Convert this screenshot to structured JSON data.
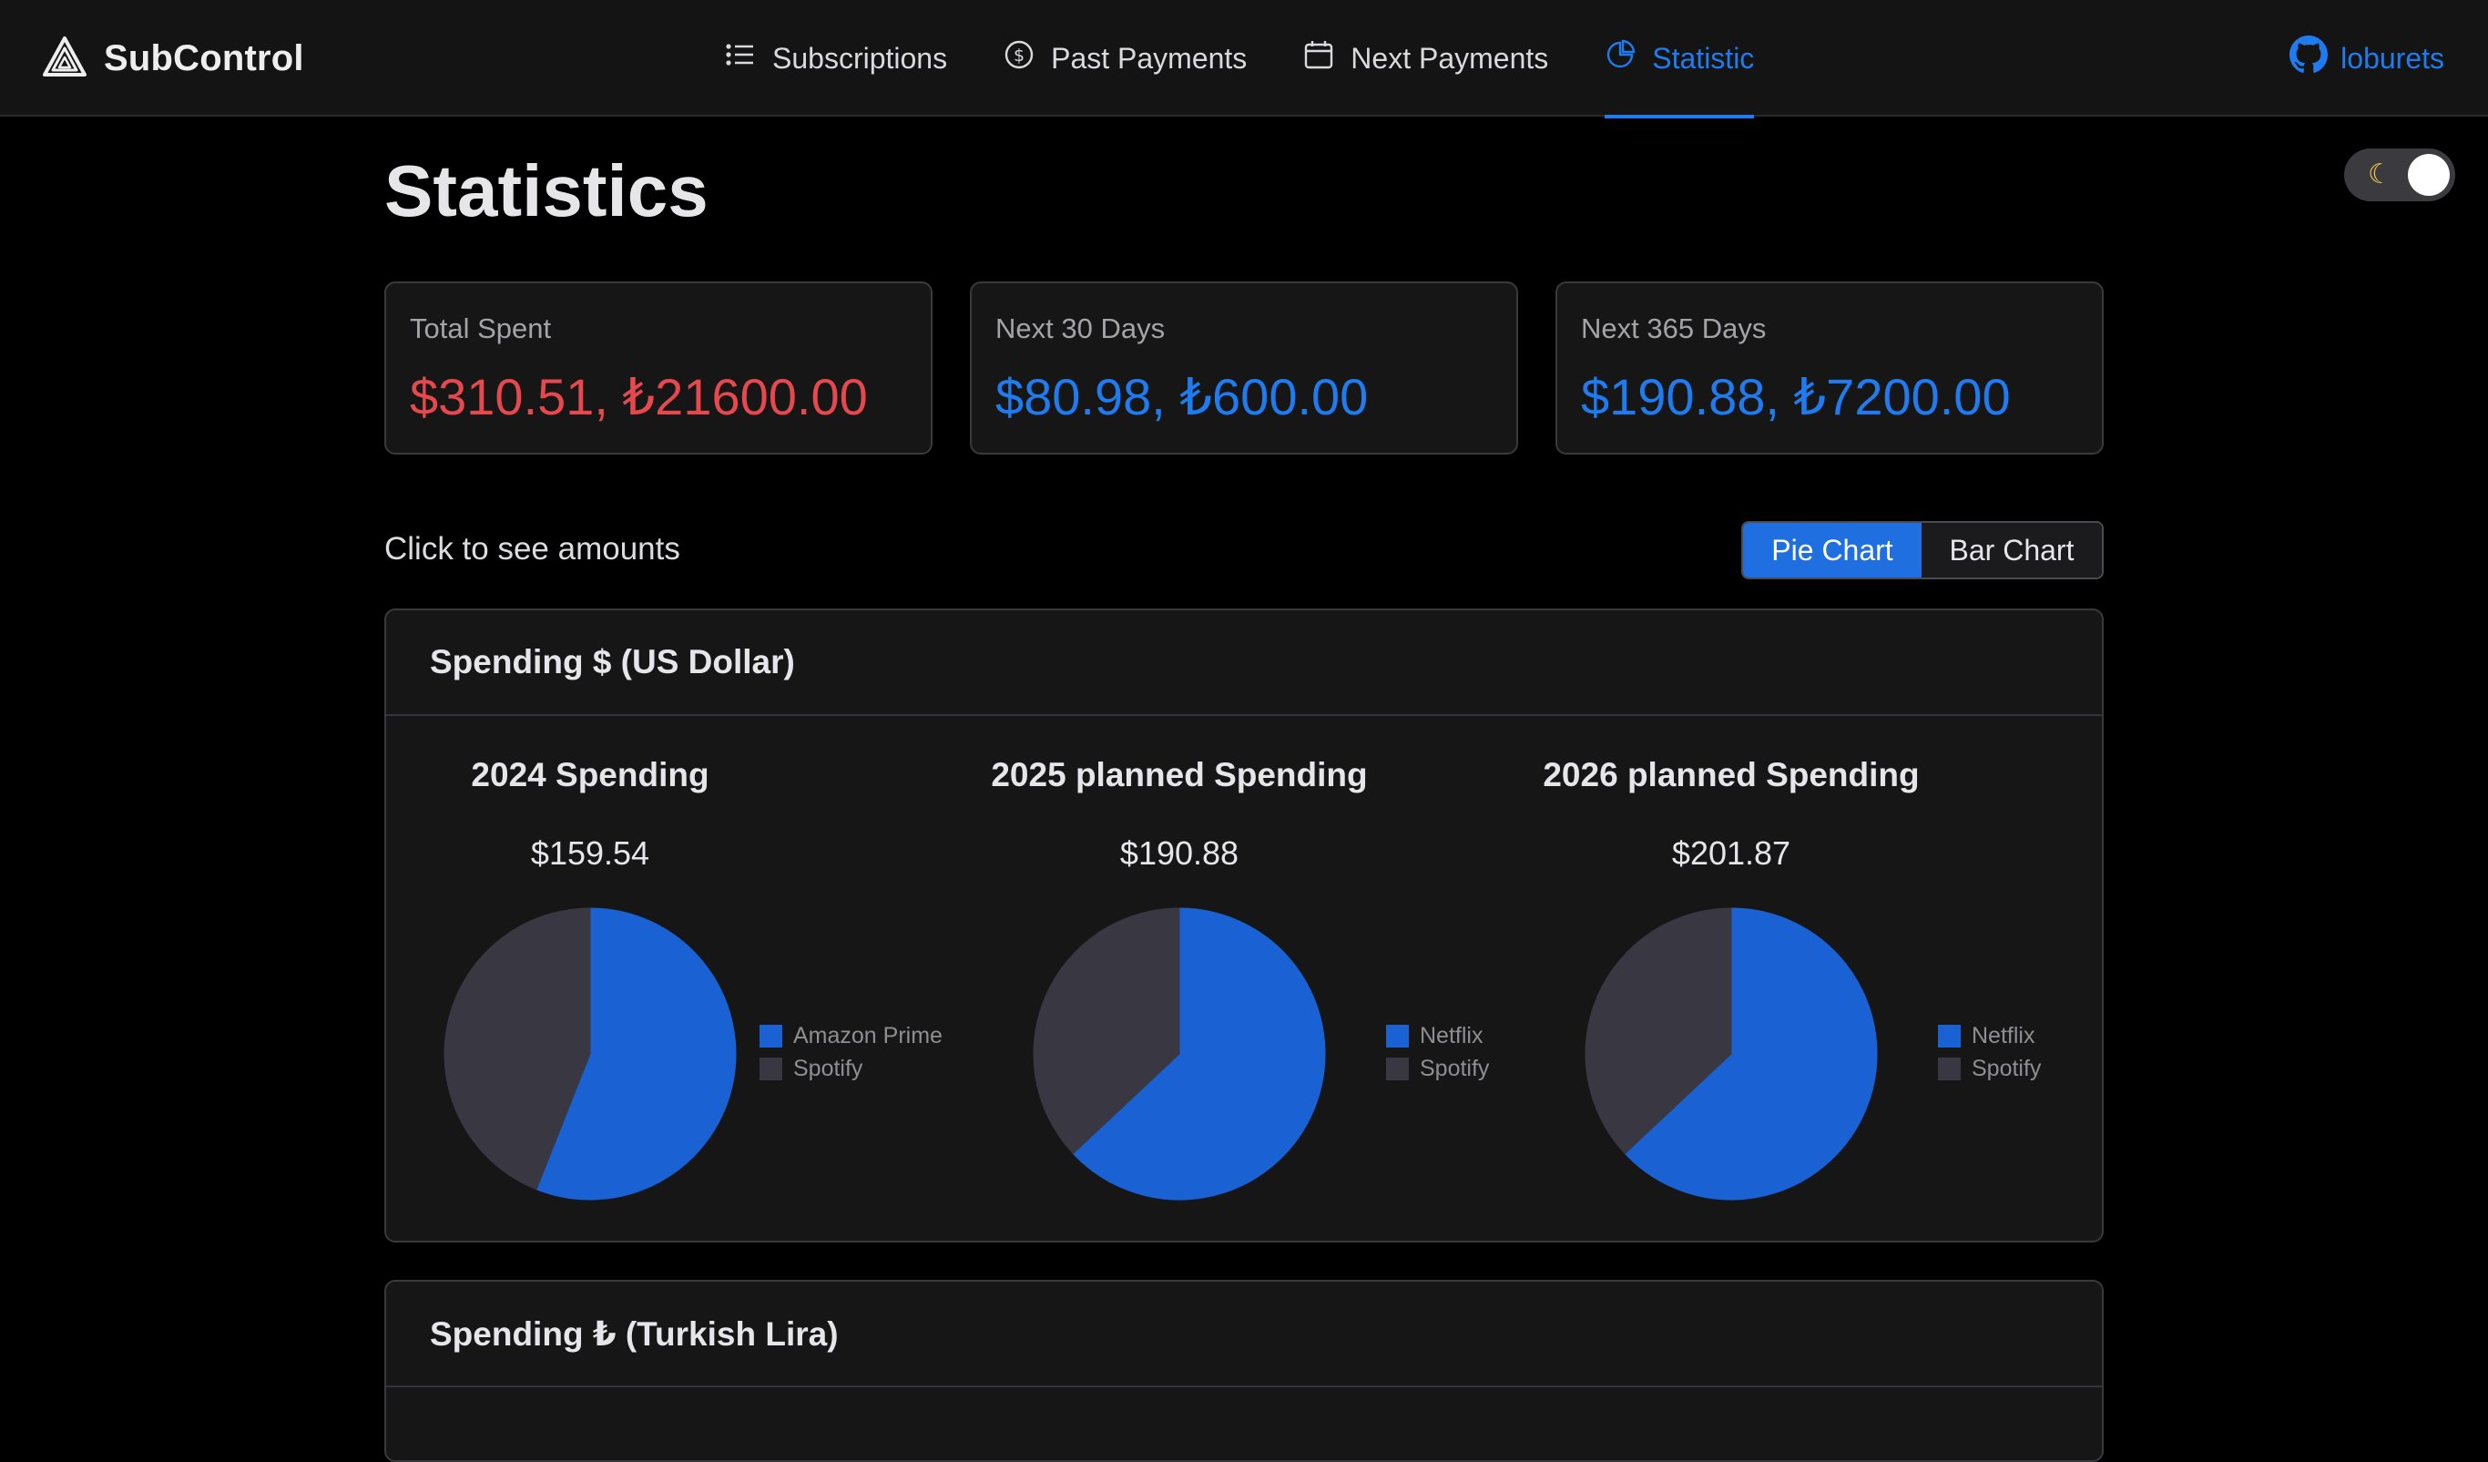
{
  "app": {
    "name": "SubControl",
    "logo_icon": "alert-triangle-icon"
  },
  "nav": {
    "items": [
      {
        "label": "Subscriptions",
        "icon": "list-icon",
        "active": false
      },
      {
        "label": "Past Payments",
        "icon": "dollar-circle-icon",
        "active": false
      },
      {
        "label": "Next Payments",
        "icon": "calendar-icon",
        "active": false
      },
      {
        "label": "Statistic",
        "icon": "pie-chart-icon",
        "active": true
      }
    ],
    "github_user": "loburets",
    "github_icon": "github-icon"
  },
  "theme_toggle": {
    "icon": "moon-icon",
    "mode": "dark"
  },
  "page": {
    "title": "Statistics"
  },
  "cards": [
    {
      "label": "Total Spent",
      "value": "$310.51, ₺21600.00",
      "color": "#e5484d"
    },
    {
      "label": "Next 30 Days",
      "value": "$80.98, ₺600.00",
      "color": "#1f7cf0"
    },
    {
      "label": "Next 365 Days",
      "value": "$190.88, ₺7200.00",
      "color": "#1f7cf0"
    }
  ],
  "hint": "Click to see amounts",
  "toggle": {
    "pie_label": "Pie Chart",
    "bar_label": "Bar Chart",
    "active": "pie"
  },
  "usd_panel": {
    "title": "Spending $ (US Dollar)"
  },
  "try_panel": {
    "title": "Spending ₺ (Turkish Lira)"
  },
  "colors": {
    "blue": "#1a62d4",
    "gray": "#393842",
    "accent": "#1f7cf0",
    "bg": "#000000",
    "card": "#161617"
  },
  "chart_data": [
    {
      "type": "pie",
      "title": "2024 Spending",
      "total_label": "$159.54",
      "series": [
        {
          "name": "Amazon Prime",
          "value": 0.56,
          "color": "#1a62d4"
        },
        {
          "name": "Spotify",
          "value": 0.44,
          "color": "#393842"
        }
      ]
    },
    {
      "type": "pie",
      "title": "2025 planned Spending",
      "total_label": "$190.88",
      "series": [
        {
          "name": "Netflix",
          "value": 0.63,
          "color": "#1a62d4"
        },
        {
          "name": "Spotify",
          "value": 0.37,
          "color": "#393842"
        }
      ]
    },
    {
      "type": "pie",
      "title": "2026 planned Spending",
      "total_label": "$201.87",
      "series": [
        {
          "name": "Netflix",
          "value": 0.63,
          "color": "#1a62d4"
        },
        {
          "name": "Spotify",
          "value": 0.37,
          "color": "#393842"
        }
      ]
    }
  ]
}
